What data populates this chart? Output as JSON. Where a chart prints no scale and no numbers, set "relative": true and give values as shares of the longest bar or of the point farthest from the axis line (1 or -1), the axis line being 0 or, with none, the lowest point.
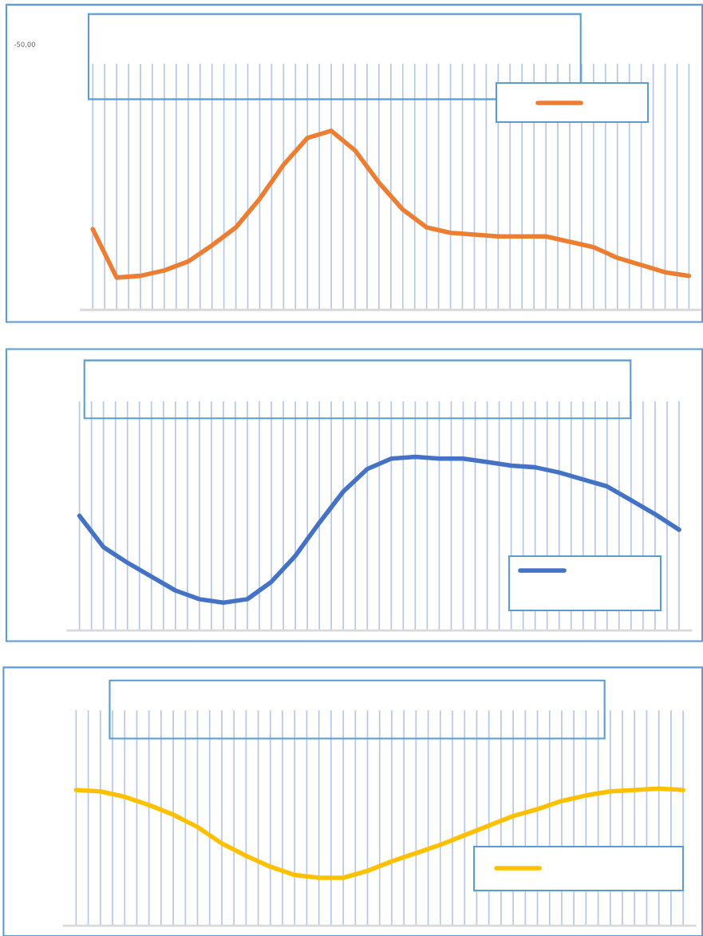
{
  "chart_data": [
    {
      "type": "line",
      "relative": true,
      "grid": "x",
      "annotations": [
        "-50,00"
      ],
      "categories": [
        null,
        null,
        null,
        null,
        null,
        null,
        null,
        null,
        null,
        null,
        null,
        null,
        null,
        null,
        null,
        null,
        null,
        null,
        null,
        null,
        null,
        null,
        null,
        null,
        null,
        null
      ],
      "series": [
        {
          "color": "#ed7d31",
          "values": [
            0.45,
            0.18,
            0.19,
            0.22,
            0.27,
            0.36,
            0.46,
            0.62,
            0.81,
            0.96,
            1,
            0.89,
            0.71,
            0.56,
            0.46,
            0.43,
            0.42,
            0.41,
            0.41,
            0.41,
            0.38,
            0.35,
            0.29,
            0.25,
            0.21,
            0.19
          ]
        }
      ]
    },
    {
      "type": "line",
      "relative": true,
      "grid": "x",
      "categories": [
        null,
        null,
        null,
        null,
        null,
        null,
        null,
        null,
        null,
        null,
        null,
        null,
        null,
        null,
        null,
        null,
        null,
        null,
        null,
        null,
        null,
        null,
        null,
        null,
        null,
        null
      ],
      "series": [
        {
          "color": "#4472c4",
          "values": [
            0.66,
            0.48,
            0.39,
            0.31,
            0.23,
            0.18,
            0.16,
            0.18,
            0.28,
            0.43,
            0.62,
            0.8,
            0.93,
            0.99,
            1,
            0.99,
            0.99,
            0.97,
            0.95,
            0.94,
            0.91,
            0.87,
            0.83,
            0.75,
            0.67,
            0.58
          ]
        }
      ]
    },
    {
      "type": "line",
      "relative": true,
      "grid": "x",
      "categories": [
        null,
        null,
        null,
        null,
        null,
        null,
        null,
        null,
        null,
        null,
        null,
        null,
        null,
        null,
        null,
        null,
        null,
        null,
        null,
        null,
        null,
        null,
        null,
        null,
        null,
        null
      ],
      "series": [
        {
          "color": "#ffc000",
          "values": [
            0.99,
            0.98,
            0.94,
            0.88,
            0.81,
            0.72,
            0.6,
            0.51,
            0.43,
            0.37,
            0.35,
            0.35,
            0.4,
            0.47,
            0.53,
            0.59,
            0.66,
            0.73,
            0.8,
            0.85,
            0.91,
            0.95,
            0.98,
            0.99,
            1,
            0.99
          ]
        }
      ]
    }
  ]
}
